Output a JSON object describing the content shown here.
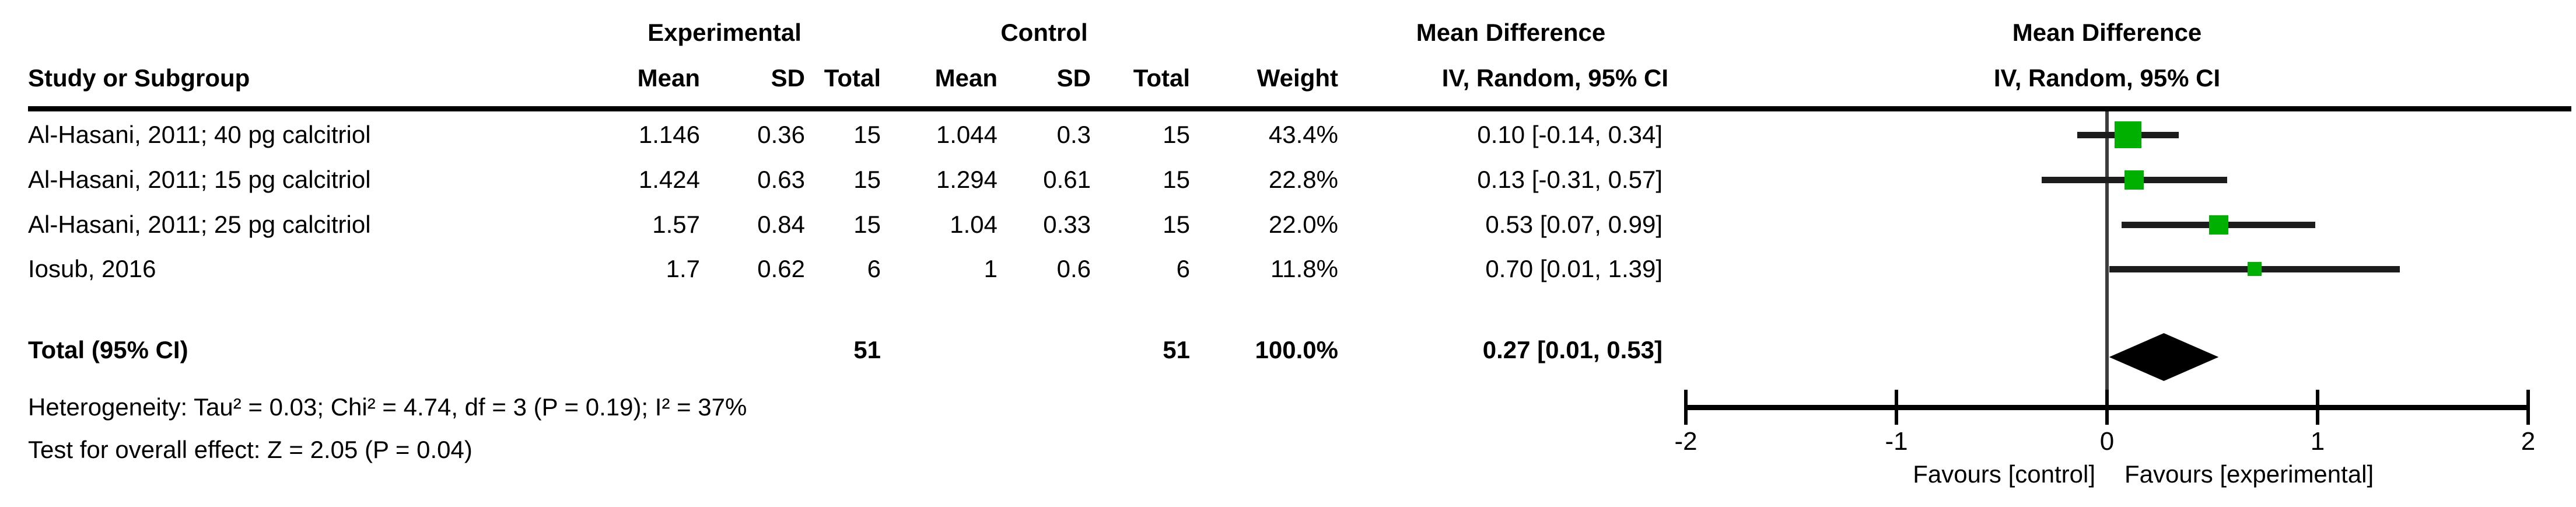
{
  "headers": {
    "study": "Study or Subgroup",
    "experimental_group": "Experimental",
    "control_group": "Control",
    "exp_mean": "Mean",
    "exp_sd": "SD",
    "exp_total": "Total",
    "ctl_mean": "Mean",
    "ctl_sd": "SD",
    "ctl_total": "Total",
    "weight": "Weight",
    "md_text_title": "Mean Difference",
    "md_text_subtitle": "IV, Random, 95% CI",
    "md_plot_title": "Mean Difference",
    "md_plot_subtitle": "IV, Random, 95% CI"
  },
  "rows": [
    {
      "study": "Al-Hasani, 2011; 40 pg calcitriol",
      "exp_mean": "1.146",
      "exp_sd": "0.36",
      "exp_total": "15",
      "ctl_mean": "1.044",
      "ctl_sd": "0.3",
      "ctl_total": "15",
      "weight": "43.4%",
      "ci_text": "0.10 [-0.14, 0.34]"
    },
    {
      "study": "Al-Hasani, 2011; 15 pg calcitriol",
      "exp_mean": "1.424",
      "exp_sd": "0.63",
      "exp_total": "15",
      "ctl_mean": "1.294",
      "ctl_sd": "0.61",
      "ctl_total": "15",
      "weight": "22.8%",
      "ci_text": "0.13 [-0.31, 0.57]"
    },
    {
      "study": "Al-Hasani, 2011; 25 pg calcitriol",
      "exp_mean": "1.57",
      "exp_sd": "0.84",
      "exp_total": "15",
      "ctl_mean": "1.04",
      "ctl_sd": "0.33",
      "ctl_total": "15",
      "weight": "22.0%",
      "ci_text": "0.53 [0.07, 0.99]"
    },
    {
      "study": "Iosub, 2016",
      "exp_mean": "1.7",
      "exp_sd": "0.62",
      "exp_total": "6",
      "ctl_mean": "1",
      "ctl_sd": "0.6",
      "ctl_total": "6",
      "weight": "11.8%",
      "ci_text": "0.70 [0.01, 1.39]"
    }
  ],
  "total_row": {
    "label": "Total (95% CI)",
    "exp_total": "51",
    "ctl_total": "51",
    "weight": "100.0%",
    "ci_text": "0.27 [0.01, 0.53]"
  },
  "footnotes": {
    "heterogeneity": "Heterogeneity: Tau² = 0.03; Chi² = 4.74, df = 3 (P = 0.19); I² = 37%",
    "overall_effect": "Test for overall effect: Z = 2.05 (P = 0.04)"
  },
  "chart_data": {
    "type": "forest",
    "effect_measure": "Mean Difference",
    "model": "IV, Random, 95% CI",
    "xlim": [
      -2,
      2
    ],
    "ticks": [
      -2,
      -1,
      0,
      1,
      2
    ],
    "favours_left": "Favours [control]",
    "favours_right": "Favours [experimental]",
    "studies": [
      {
        "name": "Al-Hasani, 2011; 40 pg calcitriol",
        "md": 0.1,
        "ci_low": -0.14,
        "ci_high": 0.34,
        "weight_pct": 43.4
      },
      {
        "name": "Al-Hasani, 2011; 15 pg calcitriol",
        "md": 0.13,
        "ci_low": -0.31,
        "ci_high": 0.57,
        "weight_pct": 22.8
      },
      {
        "name": "Al-Hasani, 2011; 25 pg calcitriol",
        "md": 0.53,
        "ci_low": 0.07,
        "ci_high": 0.99,
        "weight_pct": 22.0
      },
      {
        "name": "Iosub, 2016",
        "md": 0.7,
        "ci_low": 0.01,
        "ci_high": 1.39,
        "weight_pct": 11.8
      }
    ],
    "total": {
      "md": 0.27,
      "ci_low": 0.01,
      "ci_high": 0.53,
      "weight_pct": 100.0
    },
    "colors": {
      "marker_green": "#00b000",
      "ci_line": "#1c1c1c",
      "diamond": "#000000",
      "axis": "#000000",
      "zero_line": "#3c3c3c"
    }
  }
}
